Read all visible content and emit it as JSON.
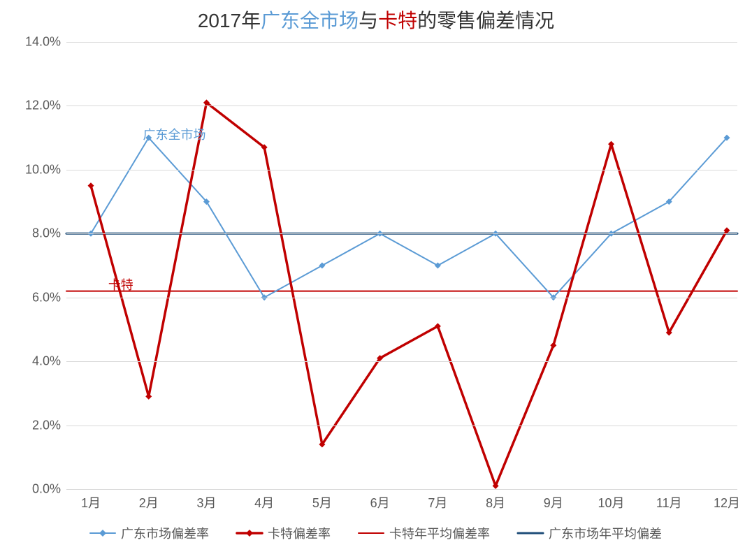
{
  "title": {
    "prefix": "2017年",
    "blue": "广东全市场",
    "mid": "与",
    "red": "卡特",
    "suffix": "的零售偏差情况",
    "fontsize": 28
  },
  "chart": {
    "type": "line",
    "background_color": "#ffffff",
    "grid_color": "#d9d9d9",
    "axis_label_color": "#595959",
    "axis_fontsize": 18,
    "ylim": [
      0,
      14
    ],
    "ytick_step": 2,
    "y_format_suffix": ".0%",
    "categories": [
      "1月",
      "2月",
      "3月",
      "4月",
      "5月",
      "6月",
      "7月",
      "8月",
      "9月",
      "10月",
      "11月",
      "12月"
    ],
    "series": {
      "gd_market": {
        "label": "广东市场偏差率",
        "inline_label": "广东全市场",
        "color": "#5b9bd5",
        "line_width": 2,
        "marker": "diamond",
        "marker_size": 9,
        "values": [
          8.0,
          11.0,
          9.0,
          6.0,
          7.0,
          8.0,
          7.0,
          8.0,
          6.0,
          8.0,
          9.0,
          11.0
        ]
      },
      "kate": {
        "label": "卡特偏差率",
        "inline_label": "卡特",
        "color": "#c00000",
        "line_width": 3.5,
        "marker": "diamond",
        "marker_size": 9,
        "values": [
          9.5,
          2.9,
          12.1,
          10.7,
          1.4,
          4.1,
          5.1,
          0.1,
          4.5,
          10.8,
          4.9,
          8.1
        ]
      },
      "kate_avg": {
        "label": "卡特年平均偏差率",
        "color": "#c00000",
        "line_width": 2,
        "value": 6.2
      },
      "gd_avg": {
        "label": "广东市场年平均偏差",
        "color": "#1f4e79",
        "line_width": 3,
        "value": 8.0
      }
    },
    "inline_labels": {
      "gd_market": {
        "x_index": 0.9,
        "y": 11.4
      },
      "kate": {
        "x_index": 0.3,
        "y": 6.7
      }
    },
    "legend": {
      "position": "bottom",
      "fontsize": 18,
      "color": "#595959",
      "order": [
        "gd_market",
        "kate",
        "kate_avg",
        "gd_avg"
      ]
    }
  }
}
